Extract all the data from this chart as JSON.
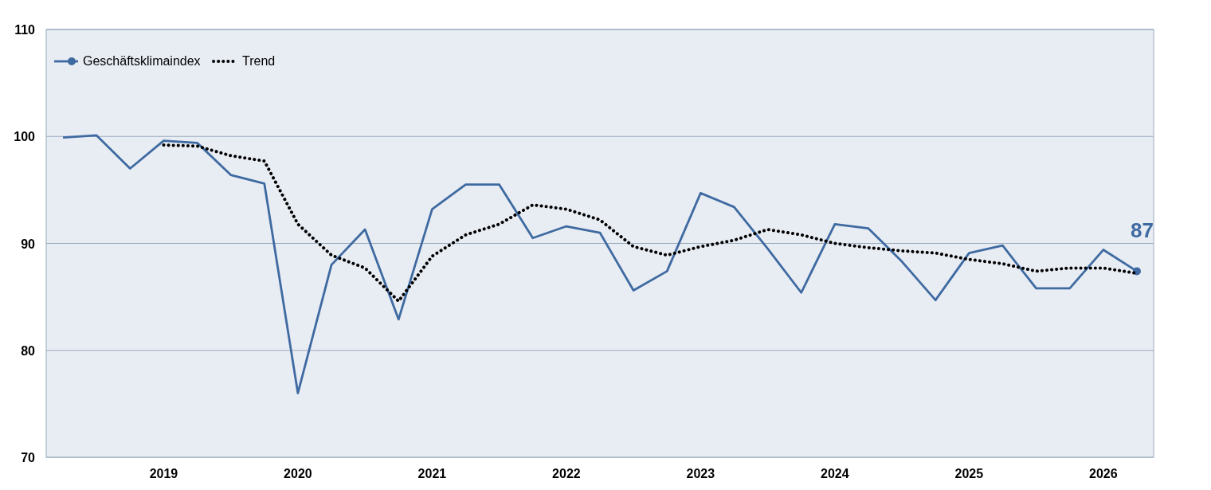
{
  "chart_data": {
    "type": "line",
    "categories": [
      null,
      null,
      null,
      "2019",
      null,
      null,
      null,
      "2020",
      null,
      null,
      null,
      "2021",
      null,
      null,
      null,
      "2022",
      null,
      null,
      null,
      "2023",
      null,
      null,
      null,
      "2024",
      null,
      null,
      null,
      "2025",
      null,
      null,
      null,
      "2026",
      null
    ],
    "series": [
      {
        "name": "Geschäftsklimaindex",
        "color": "#3e6aa1",
        "line_style": "solid",
        "values": [
          99.9,
          100.1,
          97.0,
          99.6,
          99.4,
          96.4,
          95.6,
          76.0,
          88.0,
          91.3,
          82.9,
          93.2,
          95.5,
          95.5,
          90.5,
          91.6,
          91.0,
          85.6,
          87.4,
          94.7,
          93.4,
          89.5,
          85.4,
          91.8,
          91.4,
          88.3,
          84.7,
          89.1,
          89.8,
          85.8,
          85.8,
          89.4,
          87.4
        ],
        "value_labels": [
          null,
          null,
          null,
          null,
          null,
          null,
          null,
          null,
          null,
          null,
          null,
          null,
          null,
          null,
          null,
          null,
          null,
          null,
          null,
          null,
          null,
          null,
          null,
          null,
          null,
          null,
          null,
          null,
          null,
          null,
          null,
          null,
          "87"
        ]
      },
      {
        "name": "Trend",
        "color": "#000000",
        "line_style": "dotted",
        "values": [
          null,
          null,
          null,
          99.2,
          99.1,
          98.2,
          97.7,
          91.8,
          88.9,
          87.7,
          84.6,
          88.8,
          90.8,
          91.8,
          93.6,
          93.2,
          92.2,
          89.7,
          88.9,
          89.7,
          90.3,
          91.3,
          90.8,
          90.0,
          89.6,
          89.3,
          89.1,
          88.5,
          88.1,
          87.4,
          87.7,
          87.7,
          87.2
        ]
      }
    ],
    "ylim": [
      70,
      110
    ],
    "yticks": [
      70,
      80,
      90,
      100,
      110
    ],
    "grid": "y",
    "legend": "top left"
  }
}
